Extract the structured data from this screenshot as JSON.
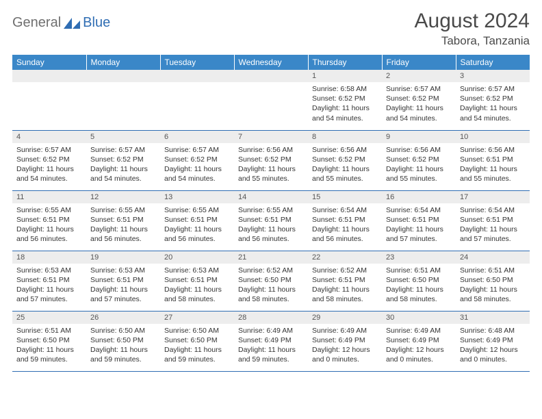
{
  "logo": {
    "text1": "General",
    "text2": "Blue"
  },
  "title": "August 2024",
  "location": "Tabora, Tanzania",
  "colors": {
    "header_bg": "#3a87c8",
    "header_text": "#ffffff",
    "daynum_bg": "#ededed",
    "border": "#2f6db3",
    "body_text": "#333333",
    "title_text": "#4a4a4a"
  },
  "weekdays": [
    "Sunday",
    "Monday",
    "Tuesday",
    "Wednesday",
    "Thursday",
    "Friday",
    "Saturday"
  ],
  "weeks": [
    [
      {
        "n": "",
        "body": ""
      },
      {
        "n": "",
        "body": ""
      },
      {
        "n": "",
        "body": ""
      },
      {
        "n": "",
        "body": ""
      },
      {
        "n": "1",
        "body": "Sunrise: 6:58 AM\nSunset: 6:52 PM\nDaylight: 11 hours and 54 minutes."
      },
      {
        "n": "2",
        "body": "Sunrise: 6:57 AM\nSunset: 6:52 PM\nDaylight: 11 hours and 54 minutes."
      },
      {
        "n": "3",
        "body": "Sunrise: 6:57 AM\nSunset: 6:52 PM\nDaylight: 11 hours and 54 minutes."
      }
    ],
    [
      {
        "n": "4",
        "body": "Sunrise: 6:57 AM\nSunset: 6:52 PM\nDaylight: 11 hours and 54 minutes."
      },
      {
        "n": "5",
        "body": "Sunrise: 6:57 AM\nSunset: 6:52 PM\nDaylight: 11 hours and 54 minutes."
      },
      {
        "n": "6",
        "body": "Sunrise: 6:57 AM\nSunset: 6:52 PM\nDaylight: 11 hours and 54 minutes."
      },
      {
        "n": "7",
        "body": "Sunrise: 6:56 AM\nSunset: 6:52 PM\nDaylight: 11 hours and 55 minutes."
      },
      {
        "n": "8",
        "body": "Sunrise: 6:56 AM\nSunset: 6:52 PM\nDaylight: 11 hours and 55 minutes."
      },
      {
        "n": "9",
        "body": "Sunrise: 6:56 AM\nSunset: 6:52 PM\nDaylight: 11 hours and 55 minutes."
      },
      {
        "n": "10",
        "body": "Sunrise: 6:56 AM\nSunset: 6:51 PM\nDaylight: 11 hours and 55 minutes."
      }
    ],
    [
      {
        "n": "11",
        "body": "Sunrise: 6:55 AM\nSunset: 6:51 PM\nDaylight: 11 hours and 56 minutes."
      },
      {
        "n": "12",
        "body": "Sunrise: 6:55 AM\nSunset: 6:51 PM\nDaylight: 11 hours and 56 minutes."
      },
      {
        "n": "13",
        "body": "Sunrise: 6:55 AM\nSunset: 6:51 PM\nDaylight: 11 hours and 56 minutes."
      },
      {
        "n": "14",
        "body": "Sunrise: 6:55 AM\nSunset: 6:51 PM\nDaylight: 11 hours and 56 minutes."
      },
      {
        "n": "15",
        "body": "Sunrise: 6:54 AM\nSunset: 6:51 PM\nDaylight: 11 hours and 56 minutes."
      },
      {
        "n": "16",
        "body": "Sunrise: 6:54 AM\nSunset: 6:51 PM\nDaylight: 11 hours and 57 minutes."
      },
      {
        "n": "17",
        "body": "Sunrise: 6:54 AM\nSunset: 6:51 PM\nDaylight: 11 hours and 57 minutes."
      }
    ],
    [
      {
        "n": "18",
        "body": "Sunrise: 6:53 AM\nSunset: 6:51 PM\nDaylight: 11 hours and 57 minutes."
      },
      {
        "n": "19",
        "body": "Sunrise: 6:53 AM\nSunset: 6:51 PM\nDaylight: 11 hours and 57 minutes."
      },
      {
        "n": "20",
        "body": "Sunrise: 6:53 AM\nSunset: 6:51 PM\nDaylight: 11 hours and 58 minutes."
      },
      {
        "n": "21",
        "body": "Sunrise: 6:52 AM\nSunset: 6:50 PM\nDaylight: 11 hours and 58 minutes."
      },
      {
        "n": "22",
        "body": "Sunrise: 6:52 AM\nSunset: 6:51 PM\nDaylight: 11 hours and 58 minutes."
      },
      {
        "n": "23",
        "body": "Sunrise: 6:51 AM\nSunset: 6:50 PM\nDaylight: 11 hours and 58 minutes."
      },
      {
        "n": "24",
        "body": "Sunrise: 6:51 AM\nSunset: 6:50 PM\nDaylight: 11 hours and 58 minutes."
      }
    ],
    [
      {
        "n": "25",
        "body": "Sunrise: 6:51 AM\nSunset: 6:50 PM\nDaylight: 11 hours and 59 minutes."
      },
      {
        "n": "26",
        "body": "Sunrise: 6:50 AM\nSunset: 6:50 PM\nDaylight: 11 hours and 59 minutes."
      },
      {
        "n": "27",
        "body": "Sunrise: 6:50 AM\nSunset: 6:50 PM\nDaylight: 11 hours and 59 minutes."
      },
      {
        "n": "28",
        "body": "Sunrise: 6:49 AM\nSunset: 6:49 PM\nDaylight: 11 hours and 59 minutes."
      },
      {
        "n": "29",
        "body": "Sunrise: 6:49 AM\nSunset: 6:49 PM\nDaylight: 12 hours and 0 minutes."
      },
      {
        "n": "30",
        "body": "Sunrise: 6:49 AM\nSunset: 6:49 PM\nDaylight: 12 hours and 0 minutes."
      },
      {
        "n": "31",
        "body": "Sunrise: 6:48 AM\nSunset: 6:49 PM\nDaylight: 12 hours and 0 minutes."
      }
    ]
  ]
}
